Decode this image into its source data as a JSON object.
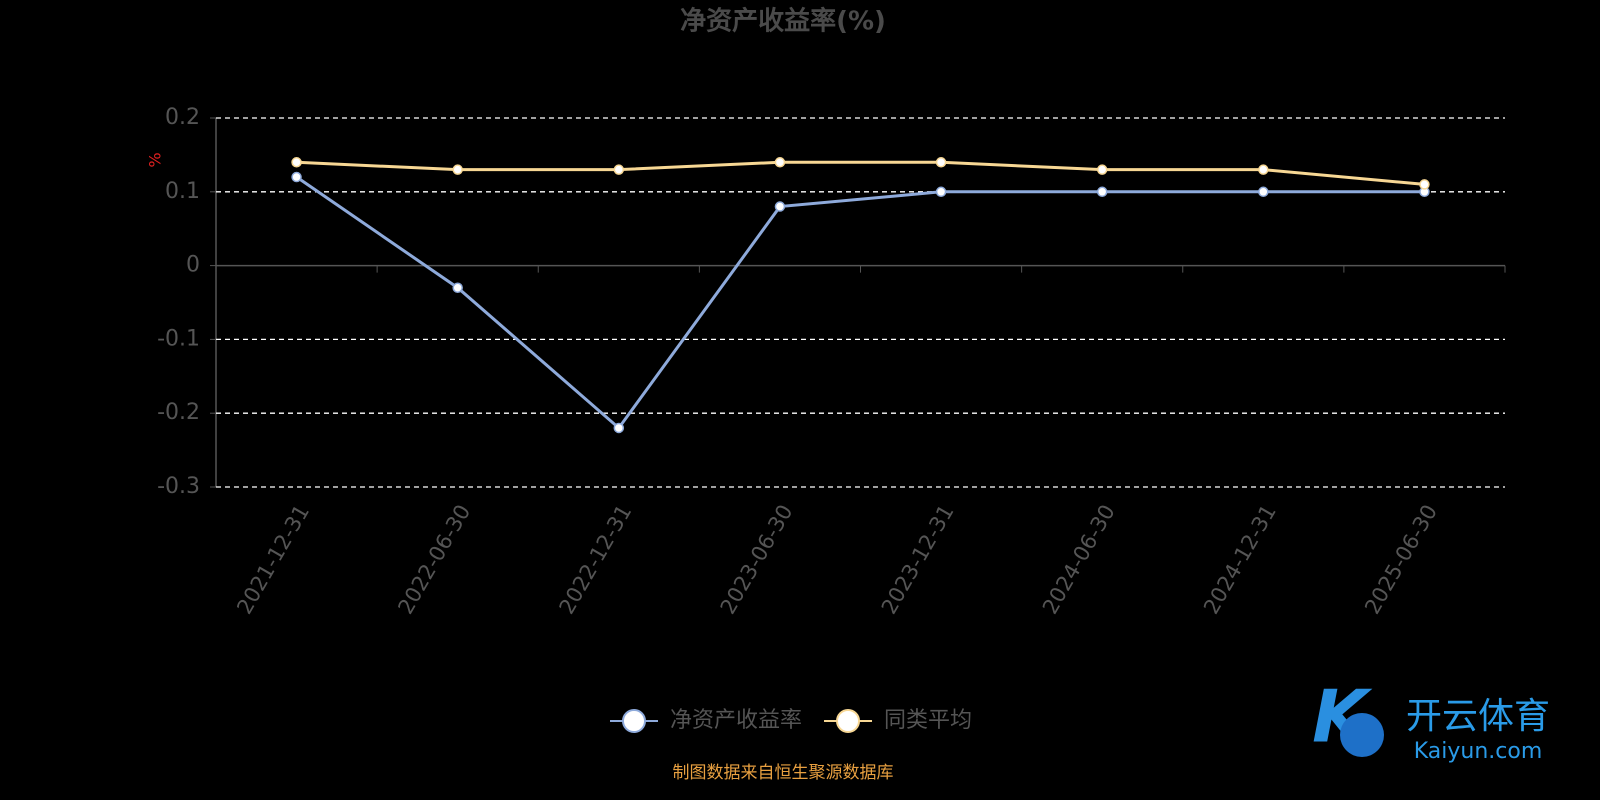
{
  "chart_data": {
    "type": "line",
    "title": "净资产收益率(%)",
    "y_label": "%",
    "categories": [
      "2021-12-31",
      "2022-06-30",
      "2022-12-31",
      "2023-06-30",
      "2023-12-31",
      "2024-06-30",
      "2024-12-31",
      "2025-06-30"
    ],
    "series": [
      {
        "name": "净资产收益率",
        "color": "#8eaadb",
        "values": [
          0.12,
          -0.03,
          -0.22,
          0.08,
          0.1,
          0.1,
          0.1,
          0.1
        ]
      },
      {
        "name": "同类平均",
        "color": "#f7d794",
        "values": [
          0.14,
          0.13,
          0.13,
          0.14,
          0.14,
          0.13,
          0.13,
          0.11
        ]
      }
    ],
    "ylim": [
      -0.3,
      0.2
    ],
    "yticks": [
      0.2,
      0.1,
      0,
      -0.1,
      -0.2,
      -0.3
    ],
    "grid": true,
    "source": "制图数据来自恒生聚源数据库",
    "watermark": {
      "brand": "开云体育",
      "site": "Kaiyun.com"
    }
  }
}
